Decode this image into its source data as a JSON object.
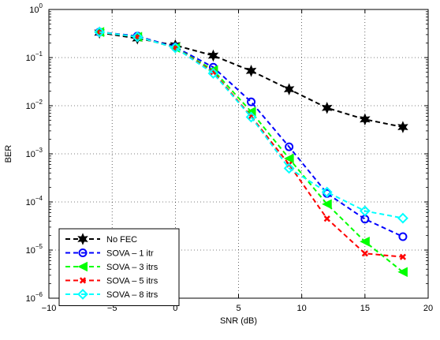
{
  "chart_data": {
    "type": "line",
    "xlabel": "SNR (dB)",
    "ylabel": "BER",
    "xlim": [
      -10,
      20
    ],
    "ylim": [
      1e-06,
      1
    ],
    "yscale": "log",
    "grid": true,
    "legend_position": "bottom-left",
    "x_ticks": [
      -10,
      -5,
      0,
      5,
      10,
      15,
      20
    ],
    "y_ticks": [
      1e-06,
      1e-05,
      0.0001,
      0.001,
      0.01,
      0.1,
      1
    ],
    "series": [
      {
        "name": "No FEC",
        "color": "#000000",
        "marker": "hexagram",
        "x": [
          -6,
          -3,
          0,
          3,
          6,
          9,
          12,
          15,
          18
        ],
        "y": [
          0.33,
          0.25,
          0.18,
          0.11,
          0.053,
          0.022,
          0.009,
          0.0052,
          0.0036
        ]
      },
      {
        "name": "SOVA – 1 itr",
        "color": "#0000ff",
        "marker": "circle",
        "x": [
          -6,
          -3,
          0,
          3,
          6,
          9,
          12,
          15,
          18
        ],
        "y": [
          0.34,
          0.28,
          0.165,
          0.063,
          0.012,
          0.0014,
          0.00015,
          4.4e-05,
          1.9e-05
        ]
      },
      {
        "name": "SOVA – 3 itrs",
        "color": "#00ff00",
        "marker": "triangle-left",
        "x": [
          -6,
          -3,
          0,
          3,
          6,
          9,
          12,
          15,
          18
        ],
        "y": [
          0.34,
          0.27,
          0.16,
          0.055,
          0.0075,
          0.0008,
          9e-05,
          1.5e-05,
          3.5e-06
        ]
      },
      {
        "name": "SOVA – 5 itrs",
        "color": "#ff0000",
        "marker": "x",
        "x": [
          -6,
          -3,
          0,
          3,
          6,
          9,
          12,
          15,
          18
        ],
        "y": [
          0.34,
          0.27,
          0.16,
          0.05,
          0.006,
          0.0006,
          4.5e-05,
          8.5e-06,
          7.2e-06
        ]
      },
      {
        "name": "SOVA – 8 itrs",
        "color": "#00ffff",
        "marker": "diamond",
        "x": [
          -6,
          -3,
          0,
          3,
          6,
          9,
          12,
          15,
          18
        ],
        "y": [
          0.34,
          0.27,
          0.16,
          0.047,
          0.0058,
          0.0005,
          0.00016,
          6.5e-05,
          4.6e-05
        ]
      }
    ]
  }
}
